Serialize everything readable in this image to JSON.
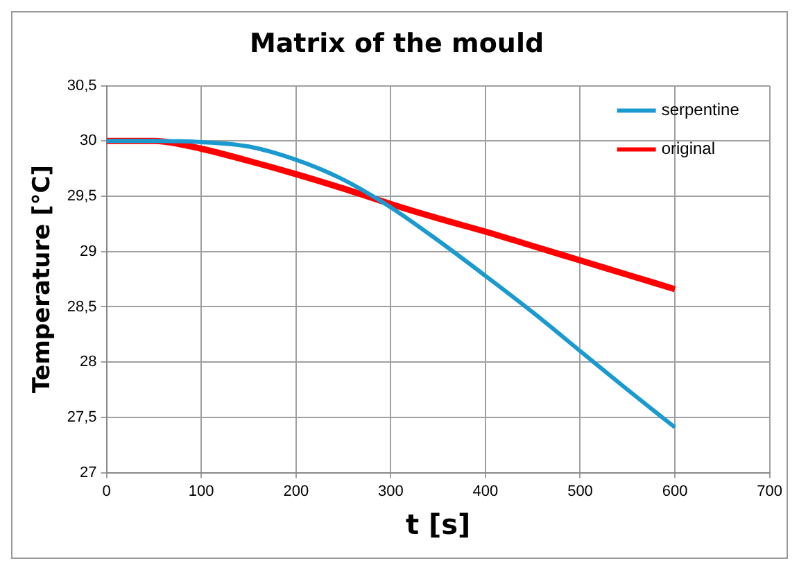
{
  "chart_data": {
    "type": "line",
    "title": "Matrix of the mould",
    "xlabel": "t [s]",
    "ylabel": "Temperature [°C]",
    "x": [
      0,
      50,
      100,
      150,
      200,
      250,
      300,
      350,
      400,
      450,
      500,
      550,
      600
    ],
    "series": [
      {
        "name": "serpentine",
        "color": "#1b9ad0",
        "values": [
          30,
          30,
          29.99,
          29.95,
          29.83,
          29.65,
          29.4,
          29.1,
          28.78,
          28.45,
          28.1,
          27.75,
          27.41
        ]
      },
      {
        "name": "original",
        "color": "#ff0000",
        "values": [
          30,
          30,
          29.93,
          29.82,
          29.7,
          29.57,
          29.43,
          29.3,
          29.18,
          29.05,
          28.92,
          28.79,
          28.66
        ]
      }
    ],
    "xlim": [
      0,
      700
    ],
    "xticks": [
      0,
      100,
      200,
      300,
      400,
      500,
      600,
      700
    ],
    "ylim": [
      27,
      30.5
    ],
    "yticks": [
      27,
      {
        "value": 27.5,
        "label": "27,5"
      },
      28,
      {
        "value": 28.5,
        "label": "28,5"
      },
      29,
      {
        "value": 29.5,
        "label": "29,5"
      },
      30,
      {
        "value": 30.5,
        "label": "30,5"
      }
    ],
    "grid": true,
    "legend": "top right",
    "marker": "none",
    "line_style": "solid"
  }
}
